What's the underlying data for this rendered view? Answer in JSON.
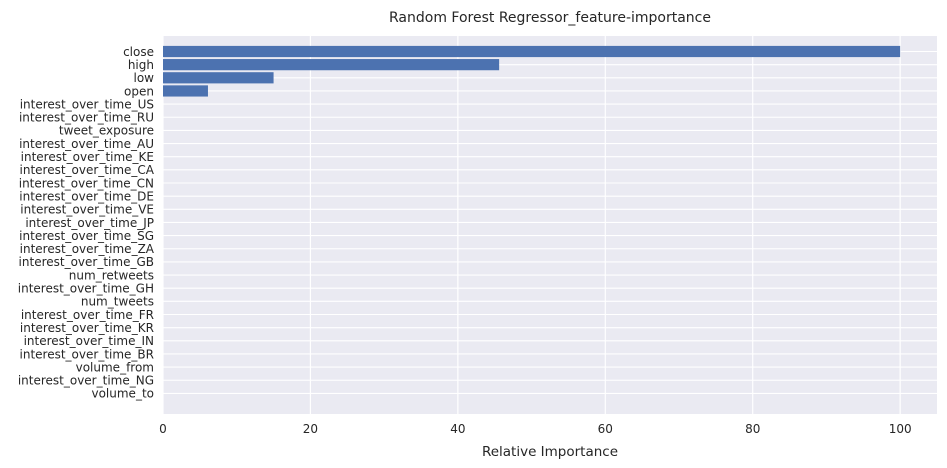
{
  "chart_data": {
    "type": "bar",
    "orientation": "horizontal",
    "title": "Random Forest Regressor_feature-importance",
    "xlabel": "Relative Importance",
    "ylabel": "",
    "xlim": [
      0,
      105
    ],
    "xticks": [
      0,
      20,
      40,
      60,
      80,
      100
    ],
    "xtick_labels": [
      "0",
      "20",
      "40",
      "60",
      "80",
      "100"
    ],
    "grid": true,
    "legend": "none",
    "bar_color": "#4c72b0",
    "background_color": "#eaeaf2",
    "categories": [
      "close",
      "high",
      "low",
      "open",
      "interest_over_time_US",
      "interest_over_time_RU",
      "tweet_exposure",
      "interest_over_time_AU",
      "interest_over_time_KE",
      "interest_over_time_CA",
      "interest_over_time_CN",
      "interest_over_time_DE",
      "interest_over_time_VE",
      "interest_over_time_JP",
      "interest_over_time_SG",
      "interest_over_time_ZA",
      "interest_over_time_GB",
      "num_retweets",
      "interest_over_time_GH",
      "num_tweets",
      "interest_over_time_FR",
      "interest_over_time_KR",
      "interest_over_time_IN",
      "interest_over_time_BR",
      "volume_from",
      "interest_over_time_NG",
      "volume_to"
    ],
    "values": [
      100,
      45.6,
      15.0,
      6.1,
      0,
      0,
      0,
      0,
      0,
      0,
      0,
      0,
      0,
      0,
      0,
      0,
      0,
      0,
      0,
      0,
      0,
      0,
      0,
      0,
      0,
      0,
      0
    ]
  }
}
